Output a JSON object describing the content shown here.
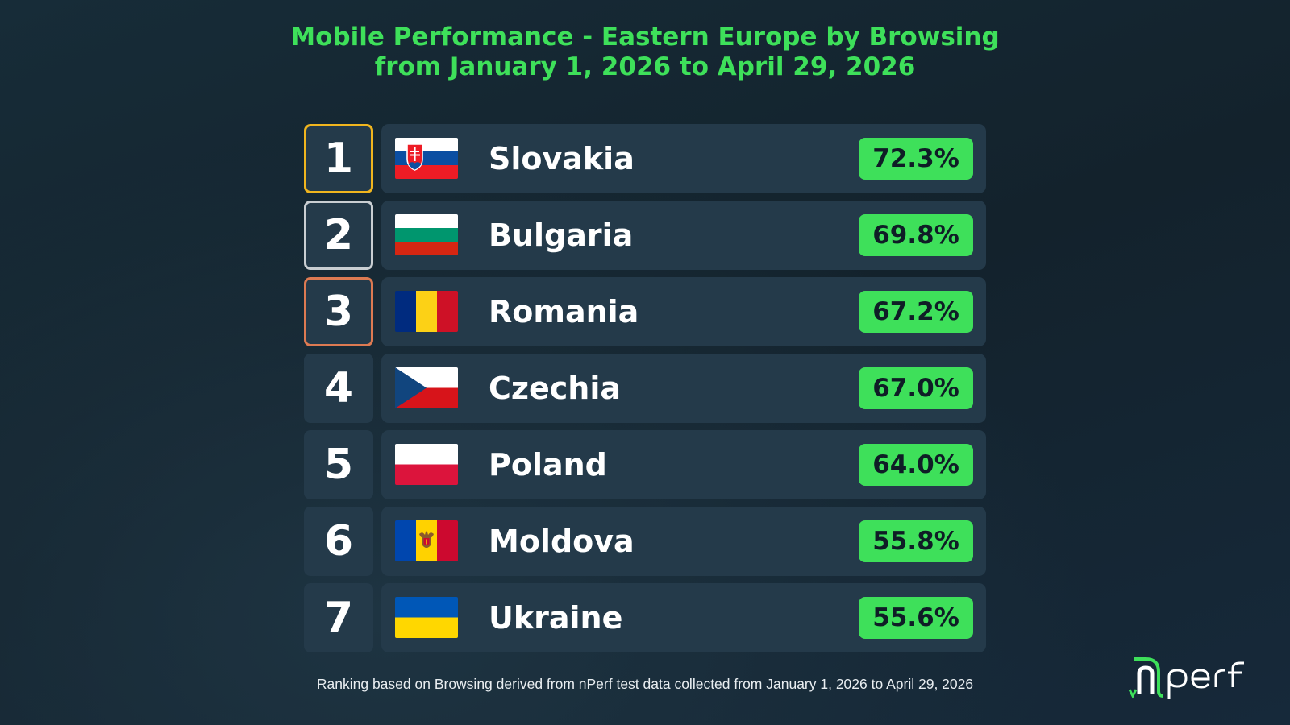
{
  "title": {
    "line1": "Mobile Performance - Eastern Europe by Browsing",
    "line2": "from January 1, 2026 to April 29, 2026"
  },
  "chart_data": {
    "type": "table",
    "columns": [
      "rank",
      "country",
      "score"
    ],
    "rows": [
      {
        "rank": "1",
        "country": "Slovakia",
        "value": 72.3,
        "label": "72.3%",
        "flag": "slovakia-flag"
      },
      {
        "rank": "2",
        "country": "Bulgaria",
        "value": 69.8,
        "label": "69.8%",
        "flag": "bulgaria-flag"
      },
      {
        "rank": "3",
        "country": "Romania",
        "value": 67.2,
        "label": "67.2%",
        "flag": "romania-flag"
      },
      {
        "rank": "4",
        "country": "Czechia",
        "value": 67.0,
        "label": "67.0%",
        "flag": "czechia-flag"
      },
      {
        "rank": "5",
        "country": "Poland",
        "value": 64.0,
        "label": "64.0%",
        "flag": "poland-flag"
      },
      {
        "rank": "6",
        "country": "Moldova",
        "value": 55.8,
        "label": "55.8%",
        "flag": "moldova-flag"
      },
      {
        "rank": "7",
        "country": "Ukraine",
        "value": 55.6,
        "label": "55.6%",
        "flag": "ukraine-flag"
      }
    ]
  },
  "footnote": "Ranking based on Browsing derived from nPerf test data collected from January 1, 2026 to April 29, 2026",
  "logo": {
    "name": "nperf-logo",
    "text": "nperf"
  },
  "colors": {
    "accent_green": "#3ee05a",
    "background": "#152833",
    "row_background": "#243a4a",
    "gold": "#f0b51e",
    "silver": "#c9ced2",
    "bronze": "#dd7a52"
  }
}
